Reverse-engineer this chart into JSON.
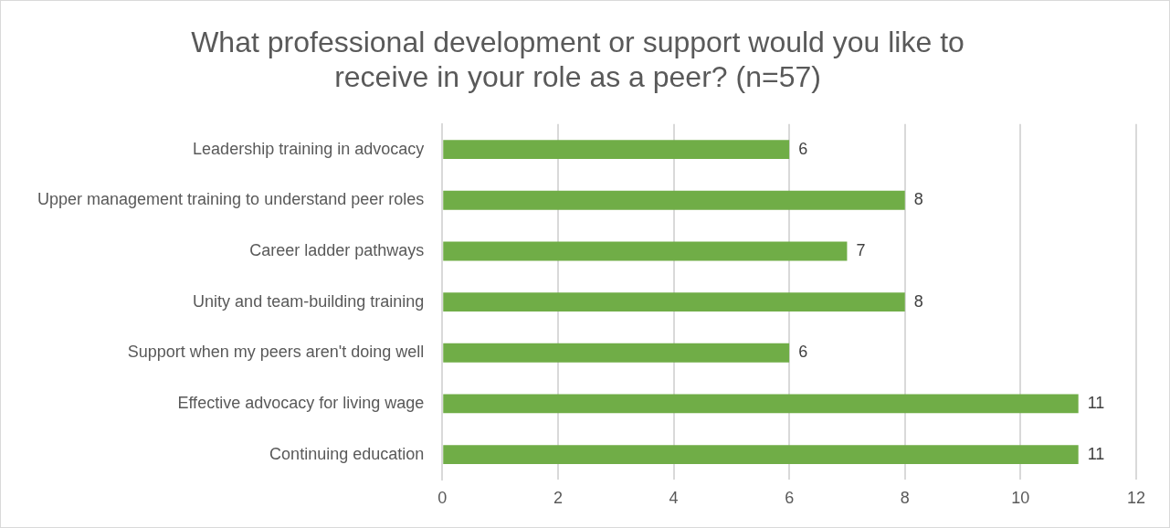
{
  "chart_data": {
    "type": "bar",
    "orientation": "horizontal",
    "title": "What professional development or support would you like to receive in your role as a peer? (n=57)",
    "categories": [
      "Leadership training in advocacy",
      "Upper management training to understand peer roles",
      "Career ladder pathways",
      "Unity and team-building training",
      "Support when my peers aren't doing well",
      "Effective advocacy for living wage",
      "Continuing education"
    ],
    "values": [
      6,
      8,
      7,
      8,
      6,
      11,
      11
    ],
    "color": "#70ad47",
    "xlim": [
      0,
      12
    ],
    "xticks": [
      0,
      2,
      4,
      6,
      8,
      10,
      12
    ],
    "grid": "x",
    "data_labels": true
  }
}
